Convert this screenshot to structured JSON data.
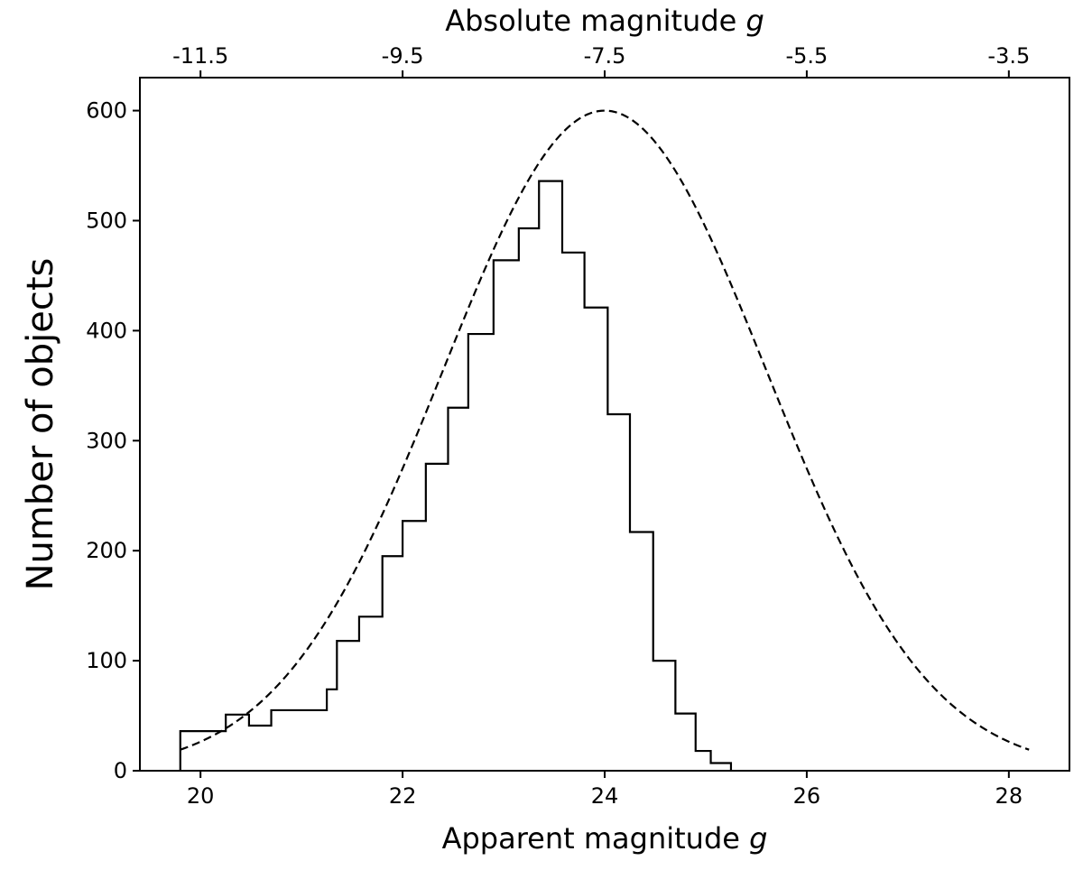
{
  "chart_data": {
    "type": "histogram",
    "xlabel_main": "Apparent magnitude ",
    "xlabel_var": "g",
    "top_xlabel_main": "Absolute magnitude ",
    "top_xlabel_var": "g",
    "ylabel": "Number of objects",
    "xlim": [
      19.4,
      28.6
    ],
    "ylim": [
      0,
      630
    ],
    "xticks": [
      20,
      22,
      24,
      26,
      28
    ],
    "yticks": [
      0,
      100,
      200,
      300,
      400,
      500,
      600
    ],
    "top_xticks": [
      {
        "label": "-11.5",
        "at": 20
      },
      {
        "label": "-9.5",
        "at": 22
      },
      {
        "label": "-7.5",
        "at": 24
      },
      {
        "label": "-5.5",
        "at": 26
      },
      {
        "label": "-3.5",
        "at": 28
      }
    ],
    "grid": false,
    "legend": "none",
    "series": [
      {
        "kind": "step-histogram",
        "color": "#000000",
        "bin_edges": [
          19.8,
          20.25,
          20.48,
          20.7,
          21.0,
          21.25,
          21.35,
          21.57,
          21.8,
          22.0,
          22.23,
          22.45,
          22.65,
          22.9,
          23.15,
          23.35,
          23.58,
          23.8,
          24.03,
          24.25,
          24.48,
          24.7,
          24.9,
          25.05,
          25.25
        ],
        "counts": [
          36,
          51,
          41,
          55,
          55,
          74,
          118,
          140,
          195,
          227,
          279,
          330,
          397,
          464,
          493,
          536,
          471,
          421,
          324,
          217,
          100,
          52,
          18,
          7
        ]
      },
      {
        "kind": "gaussian-curve",
        "color": "#000000",
        "dash": "dashed",
        "peak": 600,
        "mean": 24.0,
        "sigma": 1.6,
        "x_range": [
          19.8,
          28.2
        ]
      }
    ]
  }
}
